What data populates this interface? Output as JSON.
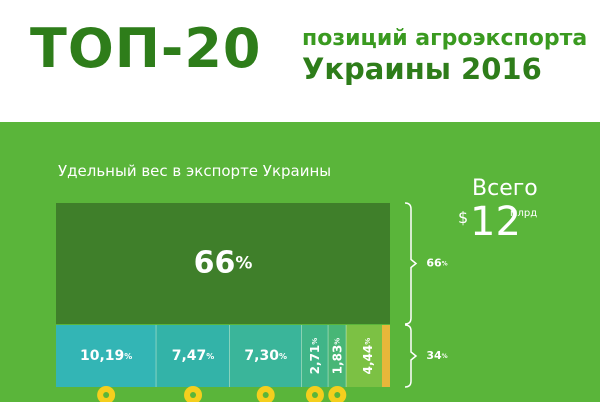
{
  "header": {
    "title": "ТОП-20",
    "subtitle_line1": "позиций агроэкспорта",
    "subtitle_line2": "Украины 2016"
  },
  "panel": {
    "caption": "Удельный вес в экспорте Украины",
    "total_label": "Всего",
    "total_currency": "$",
    "total_value": "12",
    "total_unit": "млрд"
  },
  "colors": {
    "background_green": "#5ab53a",
    "title_green": "#2e7d1a",
    "top_block": "#3f7f2a"
  },
  "chart_data": {
    "type": "treemap",
    "top": {
      "label": "66%",
      "value": 66,
      "side_label": "66%"
    },
    "bottom_side_label": "34%",
    "bottom": [
      {
        "label": "10,19%",
        "value": 10.19,
        "color": "#33b5b5",
        "icon": "oil-drop-icon"
      },
      {
        "label": "7,47%",
        "value": 7.47,
        "color": "#33b3a8",
        "icon": "wheat-icon"
      },
      {
        "label": "7,30%",
        "value": 7.3,
        "color": "#3ab59a",
        "icon": "corn-icon"
      },
      {
        "label": "2,71%",
        "value": 2.71,
        "color": "#40b588",
        "icon": "corn-cob-icon"
      },
      {
        "label": "1,83%",
        "value": 1.83,
        "color": "#48b676",
        "icon": "wheat-ear-icon"
      },
      {
        "label": "4,44%",
        "value": 4.44,
        "color": "#7cc144",
        "icon": ""
      }
    ]
  }
}
